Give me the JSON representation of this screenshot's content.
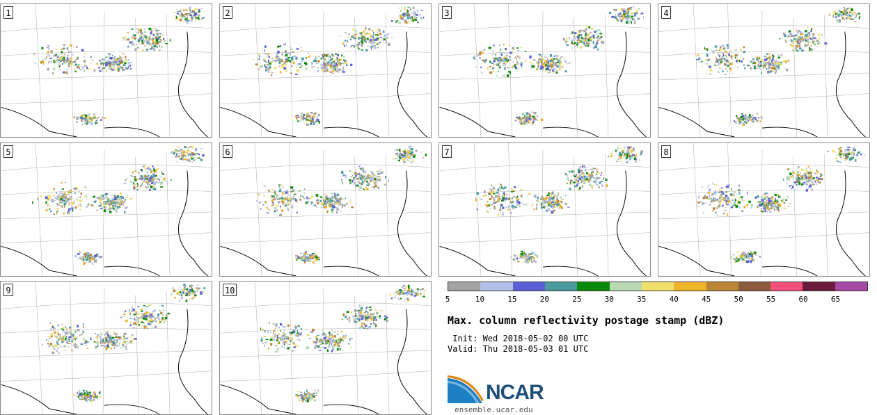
{
  "panels": [
    {
      "label": "1"
    },
    {
      "label": "2"
    },
    {
      "label": "3"
    },
    {
      "label": "4"
    },
    {
      "label": "5"
    },
    {
      "label": "6"
    },
    {
      "label": "7"
    },
    {
      "label": "8"
    },
    {
      "label": "9"
    },
    {
      "label": "10"
    }
  ],
  "colorbar": {
    "colors": [
      "#a3a3a3",
      "#b5c0e8",
      "#5b5fd6",
      "#4a9aa0",
      "#0a8a0a",
      "#b9d9b3",
      "#f1e06c",
      "#f0b32a",
      "#bb8536",
      "#8b5a3a",
      "#f0507a",
      "#6a1a3a",
      "#a64aa8"
    ],
    "ticks": [
      "5",
      "10",
      "15",
      "20",
      "25",
      "30",
      "35",
      "40",
      "45",
      "50",
      "55",
      "60",
      "65"
    ]
  },
  "title": "Max. column reflectivity postage stamp (dBZ)",
  "init": " Init: Wed 2018-05-02 00 UTC",
  "valid": "Valid: Thu 2018-05-03 01 UTC",
  "logo": {
    "text": "NCAR",
    "site": "ensemble.ucar.edu"
  }
}
